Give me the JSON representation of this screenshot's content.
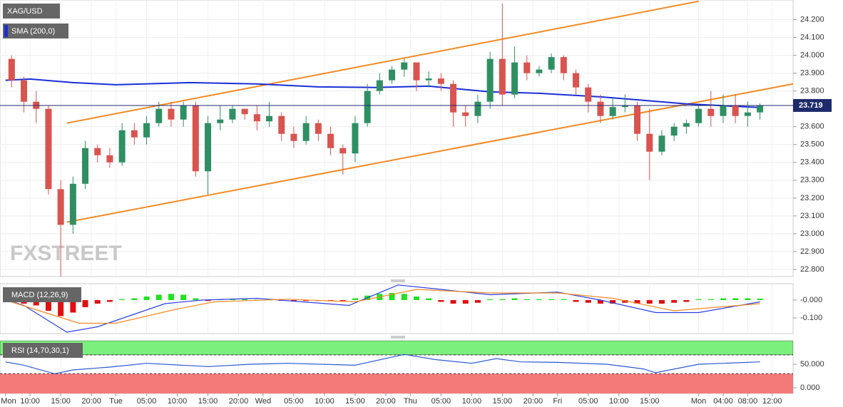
{
  "chart_data": [
    {
      "type": "candlestick",
      "title": "XAG/USD",
      "watermark": "FXSTREET",
      "up_color": "#2f8f63",
      "down_color": "#d9534f",
      "grid": true,
      "xlim": [
        -0.9,
        128.4
      ],
      "ylim": [
        22.76,
        24.31
      ],
      "yticks": [
        {
          "value": 24.2,
          "label": "24.200"
        },
        {
          "value": 24.1,
          "label": "24.100"
        },
        {
          "value": 24.0,
          "label": "24.000"
        },
        {
          "value": 23.9,
          "label": "23.900"
        },
        {
          "value": 23.8,
          "label": "23.800"
        },
        {
          "value": 23.7,
          "label": "23.700"
        },
        {
          "value": 23.6,
          "label": "23.600"
        },
        {
          "value": 23.5,
          "label": "23.500"
        },
        {
          "value": 23.4,
          "label": "23.400"
        },
        {
          "value": 23.3,
          "label": "23.300"
        },
        {
          "value": 23.2,
          "label": "23.200"
        },
        {
          "value": 23.1,
          "label": "23.100"
        },
        {
          "value": 23.0,
          "label": "23.000"
        },
        {
          "value": 22.9,
          "label": "22.900"
        },
        {
          "value": 22.8,
          "label": "22.800"
        }
      ],
      "x": [
        1,
        3,
        5,
        7,
        9,
        11,
        13,
        15,
        17,
        19,
        21,
        23,
        25,
        27,
        29,
        31,
        33,
        35,
        37,
        39,
        41,
        43,
        45,
        47,
        49,
        51,
        53,
        55,
        57,
        59,
        61,
        63,
        65,
        67,
        69,
        71,
        73,
        75,
        77,
        79,
        81,
        83,
        85,
        87,
        89,
        91,
        93,
        95,
        97,
        99,
        101,
        103,
        105,
        107,
        109,
        111,
        113,
        115,
        117,
        119,
        121,
        123
      ],
      "open": [
        23.98,
        23.86,
        23.74,
        23.7,
        23.25,
        23.05,
        23.28,
        23.48,
        23.44,
        23.4,
        23.58,
        23.54,
        23.62,
        23.7,
        23.64,
        23.72,
        23.35,
        23.62,
        23.64,
        23.7,
        23.67,
        23.63,
        23.66,
        23.56,
        23.52,
        23.62,
        23.56,
        23.48,
        23.45,
        23.62,
        23.8,
        23.86,
        23.92,
        23.96,
        23.86,
        23.87,
        23.84,
        23.68,
        23.66,
        23.74,
        23.98,
        23.78,
        23.96,
        23.9,
        23.92,
        23.99,
        23.9,
        23.82,
        23.74,
        23.66,
        23.71,
        23.72,
        23.56,
        23.46,
        23.55,
        23.6,
        23.62,
        23.7,
        23.66,
        23.72,
        23.66,
        23.68
      ],
      "high": [
        24.0,
        23.88,
        23.8,
        23.72,
        23.3,
        23.32,
        23.52,
        23.5,
        23.48,
        23.62,
        23.62,
        23.66,
        23.74,
        23.74,
        23.74,
        23.74,
        23.66,
        23.72,
        23.72,
        23.7,
        23.72,
        23.74,
        23.68,
        23.6,
        23.66,
        23.64,
        23.6,
        23.5,
        23.66,
        23.84,
        23.9,
        23.94,
        23.98,
        23.96,
        23.91,
        23.9,
        23.86,
        23.72,
        23.78,
        24.02,
        24.29,
        24.05,
        24.0,
        23.94,
        24.01,
        24.0,
        23.92,
        23.84,
        23.78,
        23.76,
        23.78,
        23.74,
        23.7,
        23.58,
        23.62,
        23.64,
        23.72,
        23.8,
        23.78,
        23.78,
        23.74,
        23.73
      ],
      "low": [
        23.82,
        23.68,
        23.62,
        23.22,
        22.76,
        23.0,
        23.25,
        23.4,
        23.37,
        23.38,
        23.5,
        23.5,
        23.6,
        23.6,
        23.6,
        23.32,
        23.22,
        23.58,
        23.62,
        23.64,
        23.58,
        23.6,
        23.52,
        23.48,
        23.5,
        23.52,
        23.44,
        23.33,
        23.4,
        23.6,
        23.78,
        23.84,
        23.88,
        23.8,
        23.82,
        23.8,
        23.6,
        23.6,
        23.62,
        23.7,
        23.72,
        23.76,
        23.86,
        23.88,
        23.9,
        23.86,
        23.78,
        23.68,
        23.62,
        23.64,
        23.68,
        23.52,
        23.3,
        23.44,
        23.52,
        23.56,
        23.6,
        23.6,
        23.62,
        23.62,
        23.6,
        23.64
      ],
      "close": [
        23.86,
        23.74,
        23.7,
        23.25,
        23.05,
        23.28,
        23.48,
        23.44,
        23.4,
        23.58,
        23.54,
        23.62,
        23.7,
        23.64,
        23.72,
        23.35,
        23.62,
        23.64,
        23.7,
        23.67,
        23.63,
        23.66,
        23.56,
        23.52,
        23.62,
        23.56,
        23.48,
        23.45,
        23.62,
        23.8,
        23.86,
        23.92,
        23.96,
        23.86,
        23.87,
        23.84,
        23.68,
        23.66,
        23.74,
        23.98,
        23.78,
        23.96,
        23.9,
        23.92,
        23.99,
        23.9,
        23.82,
        23.74,
        23.66,
        23.71,
        23.72,
        23.56,
        23.46,
        23.55,
        23.6,
        23.62,
        23.7,
        23.66,
        23.72,
        23.66,
        23.68,
        23.719
      ],
      "price_line_color": "#1d2a6b",
      "sma": {
        "name": "SMA (200,0)",
        "color": "#1a2fd6",
        "x": [
          0,
          4,
          11,
          18,
          30,
          41,
          51,
          60,
          69,
          79,
          87,
          97,
          104,
          111,
          118,
          123
        ],
        "values": [
          23.86,
          23.867,
          23.847,
          23.835,
          23.847,
          23.84,
          23.823,
          23.82,
          23.827,
          23.795,
          23.787,
          23.767,
          23.748,
          23.728,
          23.716,
          23.708
        ]
      },
      "trendlines": [
        {
          "color": "#f08a24",
          "x": [
            10,
            113
          ],
          "values": [
            23.62,
            24.303
          ]
        },
        {
          "color": "#f08a24",
          "x": [
            10,
            128.4
          ],
          "values": [
            23.065,
            23.84
          ]
        }
      ]
    },
    {
      "type": "macd",
      "title": "MACD (12,26,9)",
      "up_color": "#22e022",
      "down_color": "#e01010",
      "ylim": [
        -0.188,
        0.092
      ],
      "yticks": [
        {
          "value": 0,
          "label": "-0.000"
        },
        {
          "value": -0.1,
          "label": "-0.100"
        }
      ],
      "histogram": [
        -0.01,
        -0.02,
        -0.03,
        -0.06,
        -0.09,
        -0.07,
        -0.04,
        -0.02,
        -0.01,
        0.005,
        0.01,
        0.02,
        0.03,
        0.035,
        0.03,
        0.01,
        -0.005,
        0.005,
        0.005,
        0.005,
        0.002,
        0.003,
        -0.003,
        -0.005,
        -0.005,
        -0.005,
        -0.005,
        -0.005,
        0.01,
        0.025,
        0.035,
        0.04,
        0.035,
        0.02,
        0.01,
        -0.01,
        -0.02,
        -0.02,
        -0.015,
        0.005,
        0.005,
        0.01,
        0.005,
        0.005,
        0.005,
        0.005,
        -0.01,
        -0.015,
        -0.02,
        -0.02,
        -0.015,
        -0.02,
        -0.02,
        -0.02,
        -0.015,
        -0.01,
        0.005,
        0.005,
        0.01,
        0.01,
        0.01,
        0.008
      ],
      "series": [
        {
          "color": "#2a3fe0",
          "x": [
            0,
            3,
            10,
            15,
            26,
            32,
            41,
            56,
            64,
            71,
            79,
            90,
            97,
            106,
            113,
            123
          ],
          "values": [
            0.004,
            -0.03,
            -0.18,
            -0.15,
            -0.02,
            0.0,
            0.01,
            -0.03,
            0.085,
            0.06,
            0.03,
            0.045,
            0.0,
            -0.07,
            -0.07,
            -0.01
          ]
        },
        {
          "color": "#f08a24",
          "x": [
            0,
            12,
            18,
            28,
            34,
            46,
            57,
            67,
            79,
            90,
            99,
            109,
            123
          ],
          "values": [
            0,
            -0.13,
            -0.13,
            -0.05,
            -0.01,
            0.005,
            -0.01,
            0.06,
            0.04,
            0.04,
            0.01,
            -0.06,
            -0.02
          ]
        }
      ]
    },
    {
      "type": "rsi",
      "title": "RSI (14,70,30,1)",
      "ylim": [
        -12,
        100
      ],
      "levels": [
        30,
        70
      ],
      "band_colors": [
        "#f47a7a",
        "#7cf07c"
      ],
      "color": "#2a5ad0",
      "yticks": [
        {
          "value": 50,
          "label": "50.000"
        },
        {
          "value": 0,
          "label": "0.000"
        }
      ],
      "x": [
        0,
        3,
        8,
        11,
        17,
        23,
        33,
        40,
        46,
        57,
        65,
        70,
        76,
        80,
        84,
        90,
        98,
        104,
        106,
        113,
        117,
        123
      ],
      "values": [
        55,
        48,
        30,
        38,
        44,
        52,
        45,
        50,
        52,
        48,
        71,
        60,
        52,
        62,
        55,
        54,
        50,
        40,
        32,
        50,
        52,
        55
      ],
      "xticks": [
        {
          "value": 0,
          "label": "Mon"
        },
        {
          "value": 4,
          "label": "10:00"
        },
        {
          "value": 9,
          "label": "15:00"
        },
        {
          "value": 14,
          "label": "20:00"
        },
        {
          "value": 18,
          "label": "Tue"
        },
        {
          "value": 23,
          "label": "05:00"
        },
        {
          "value": 28,
          "label": "10:00"
        },
        {
          "value": 33,
          "label": "15:00"
        },
        {
          "value": 38,
          "label": "20:00"
        },
        {
          "value": 42,
          "label": "Wed"
        },
        {
          "value": 47,
          "label": "05:00"
        },
        {
          "value": 52,
          "label": "10:00"
        },
        {
          "value": 57,
          "label": "15:00"
        },
        {
          "value": 62,
          "label": "20:00"
        },
        {
          "value": 66,
          "label": "Thu"
        },
        {
          "value": 71,
          "label": "05:00"
        },
        {
          "value": 76,
          "label": "10:00"
        },
        {
          "value": 81,
          "label": "15:00"
        },
        {
          "value": 86,
          "label": "20:00"
        },
        {
          "value": 90,
          "label": "Fri"
        },
        {
          "value": 95,
          "label": "05:00"
        },
        {
          "value": 100,
          "label": "10:00"
        },
        {
          "value": 105,
          "label": "15:00"
        },
        {
          "value": 113,
          "label": "Mon"
        },
        {
          "value": 117,
          "label": "04:00"
        },
        {
          "value": 121,
          "label": "08:00"
        },
        {
          "value": 125,
          "label": "12:00"
        }
      ]
    }
  ]
}
